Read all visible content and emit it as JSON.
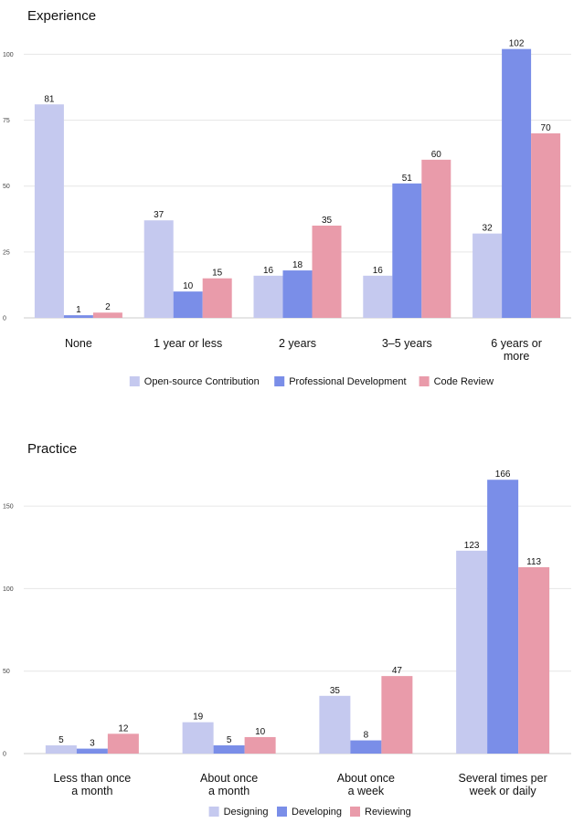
{
  "chart_data": [
    {
      "type": "bar",
      "title": "Experience",
      "categories": [
        [
          "None"
        ],
        [
          "1 year or less"
        ],
        [
          "2 years"
        ],
        [
          "3–5 years"
        ],
        [
          "6 years or",
          "more"
        ]
      ],
      "series": [
        {
          "name": "Open-source Contribution",
          "color": "#c5c9ef",
          "values": [
            81,
            37,
            16,
            16,
            32
          ]
        },
        {
          "name": "Professional Development",
          "color": "#7a8ee8",
          "values": [
            1,
            10,
            18,
            51,
            102
          ]
        },
        {
          "name": "Code Review",
          "color": "#e99baa",
          "values": [
            2,
            15,
            35,
            60,
            70
          ]
        }
      ],
      "yticks": [
        0,
        25,
        50,
        75,
        100
      ],
      "ylim": [
        0,
        105
      ],
      "grid": true,
      "legend": "bottom-center"
    },
    {
      "type": "bar",
      "title": "Practice",
      "categories": [
        [
          "Less than once",
          "a month"
        ],
        [
          "About once",
          "a month"
        ],
        [
          "About once",
          "a week"
        ],
        [
          "Several times per",
          "week or daily"
        ]
      ],
      "series": [
        {
          "name": "Designing",
          "color": "#c5c9ef",
          "values": [
            5,
            19,
            35,
            123
          ]
        },
        {
          "name": "Developing",
          "color": "#7a8ee8",
          "values": [
            3,
            5,
            8,
            166
          ]
        },
        {
          "name": "Reviewing",
          "color": "#e99baa",
          "values": [
            12,
            10,
            47,
            113
          ]
        }
      ],
      "yticks": [
        0,
        50,
        100,
        150
      ],
      "ylim": [
        0,
        170
      ],
      "grid": true,
      "legend": "bottom-center"
    }
  ]
}
